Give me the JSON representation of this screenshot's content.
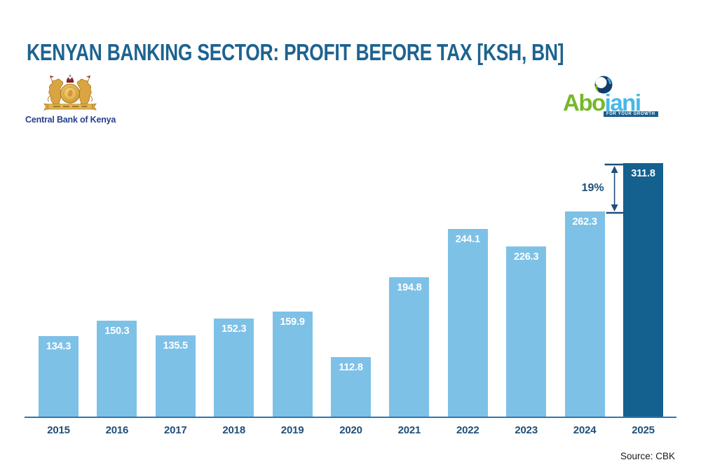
{
  "title": "KENYAN BANKING SECTOR: PROFIT BEFORE TAX [KSH, BN]",
  "cbk_logo": {
    "name": "Central Bank of Kenya"
  },
  "abojani_logo": {
    "text_green": "Abo",
    "text_blue": "jani",
    "tagline": "FOR YOUR GROWTH"
  },
  "source": "Source: CBK",
  "colors": {
    "title": "#1D6390",
    "bar": "#7EC1E7",
    "bar_highlight": "#14608E",
    "axis": "#2E75B6",
    "year_label": "#1F4E79",
    "value_label": "#FFFFFF",
    "cbk_text": "#26408B",
    "abojani_green": "#76B82A",
    "abojani_blue": "#45B8E8",
    "swirl_navy": "#123C6E",
    "tagline_bg": "#1C5F8F",
    "source": "#1A1A1A"
  },
  "chart_data": {
    "type": "bar",
    "title": "KENYAN BANKING SECTOR: PROFIT BEFORE TAX [KSH, BN]",
    "categories": [
      "2015",
      "2016",
      "2017",
      "2018",
      "2019",
      "2020",
      "2021",
      "2022",
      "2023",
      "2024",
      "2025"
    ],
    "values": [
      134.3,
      150.3,
      135.5,
      152.3,
      159.9,
      112.8,
      194.8,
      244.1,
      226.3,
      262.3,
      311.8
    ],
    "unit": "KSH, BN",
    "highlight_index": 10,
    "ylim": [
      52,
      320
    ],
    "grid": false,
    "legend": false,
    "value_labels": "inside-top, white bold",
    "annotation": {
      "label": "19%",
      "between": [
        "2024",
        "2025"
      ]
    }
  }
}
